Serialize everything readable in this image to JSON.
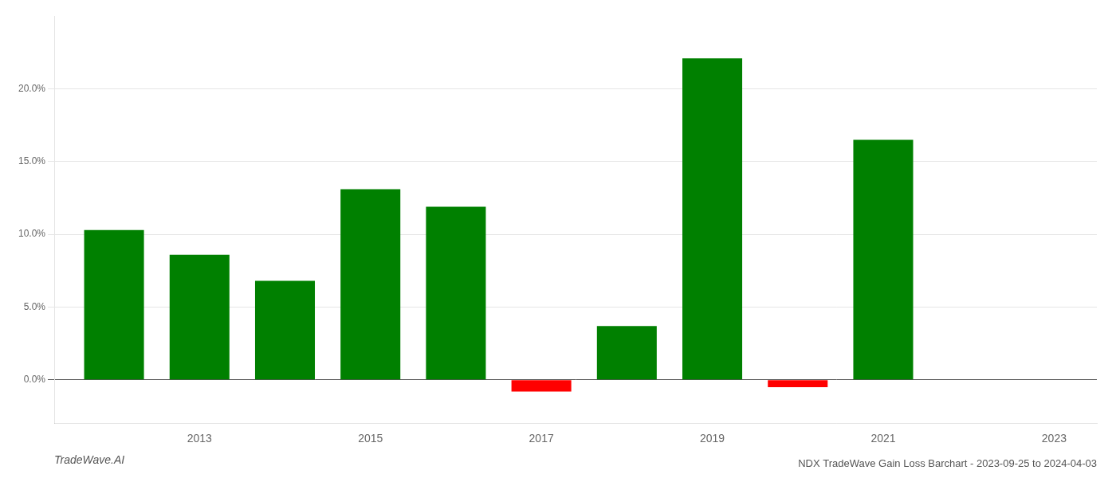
{
  "chart_data": {
    "type": "bar",
    "title": "NDX TradeWave Gain Loss Barchart - 2023-09-25 to 2024-04-03",
    "annotations": [
      "TradeWave.AI"
    ],
    "x": [
      2012,
      2013,
      2014,
      2015,
      2016,
      2017,
      2018,
      2019,
      2020,
      2021
    ],
    "values": [
      0.103,
      0.086,
      0.068,
      0.131,
      0.119,
      -0.008,
      0.037,
      0.221,
      -0.005,
      0.165
    ],
    "colors": [
      "#008000",
      "#008000",
      "#008000",
      "#008000",
      "#008000",
      "#ff0000",
      "#008000",
      "#008000",
      "#ff0000",
      "#008000"
    ],
    "xlim": [
      2011.3,
      2023.5
    ],
    "xticks": [
      2013,
      2015,
      2017,
      2019,
      2021,
      2023
    ],
    "ylim": [
      -0.03,
      0.25
    ],
    "yticks": [
      {
        "value": 0.0,
        "label": "0.0%"
      },
      {
        "value": 0.05,
        "label": "5.0%"
      },
      {
        "value": 0.1,
        "label": "10.0%"
      },
      {
        "value": 0.15,
        "label": "15.0%"
      },
      {
        "value": 0.2,
        "label": "20.0%"
      }
    ],
    "grid": "y"
  }
}
